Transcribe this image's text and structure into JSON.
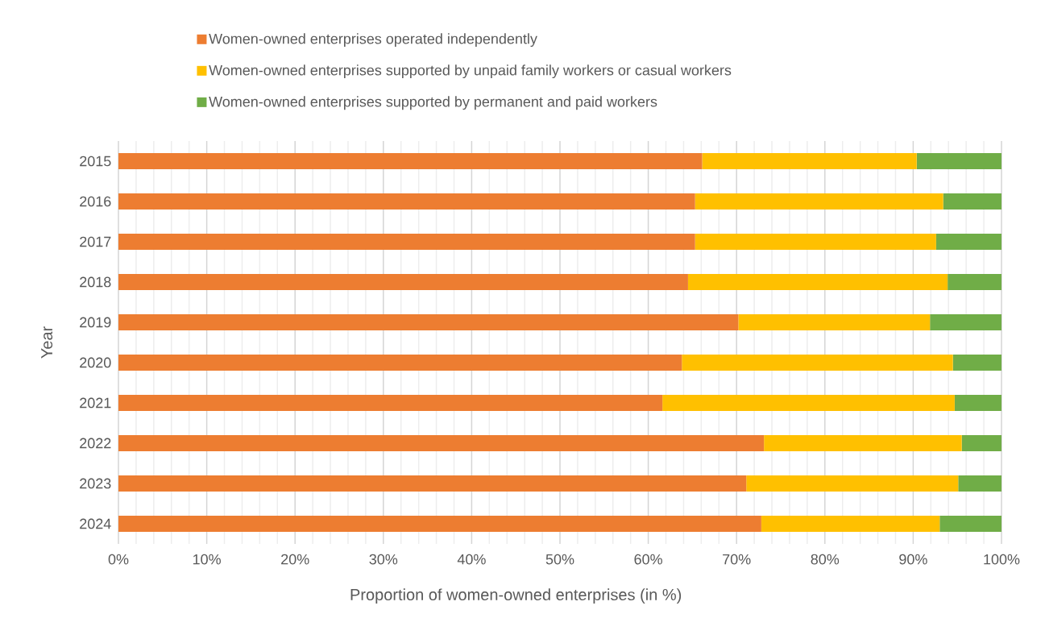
{
  "chart_data": {
    "type": "bar",
    "orientation": "horizontal",
    "stacked": true,
    "xlabel": "Proportion of women-owned enterprises (in %)",
    "ylabel": "Year",
    "categories": [
      "2015",
      "2016",
      "2017",
      "2018",
      "2019",
      "2020",
      "2021",
      "2022",
      "2023",
      "2024"
    ],
    "series": [
      {
        "name": "Women-owned enterprises operated independently",
        "color": "#ed7d31",
        "values": [
          66.1,
          65.3,
          65.3,
          64.5,
          70.2,
          63.8,
          61.6,
          73.1,
          71.1,
          72.8
        ]
      },
      {
        "name": "Women-owned enterprises supported by unpaid family workers or casual workers",
        "color": "#ffc000",
        "values": [
          24.3,
          28.1,
          27.3,
          29.4,
          21.7,
          30.7,
          33.1,
          22.4,
          24.0,
          20.2
        ]
      },
      {
        "name": "Women-owned enterprises supported by permanent and paid workers",
        "color": "#70ad47",
        "values": [
          9.6,
          6.6,
          7.4,
          6.1,
          8.1,
          5.5,
          5.3,
          4.5,
          4.9,
          7.0
        ]
      }
    ],
    "xlim": [
      0,
      100
    ],
    "xticks": [
      {
        "value": 0,
        "label": "0%"
      },
      {
        "value": 10,
        "label": "10%"
      },
      {
        "value": 20,
        "label": "20%"
      },
      {
        "value": 30,
        "label": "30%"
      },
      {
        "value": 40,
        "label": "40%"
      },
      {
        "value": 50,
        "label": "50%"
      },
      {
        "value": 60,
        "label": "60%"
      },
      {
        "value": 70,
        "label": "70%"
      },
      {
        "value": 80,
        "label": "80%"
      },
      {
        "value": 90,
        "label": "90%"
      },
      {
        "value": 100,
        "label": "100%"
      }
    ],
    "grid": "x",
    "legend": "top"
  }
}
